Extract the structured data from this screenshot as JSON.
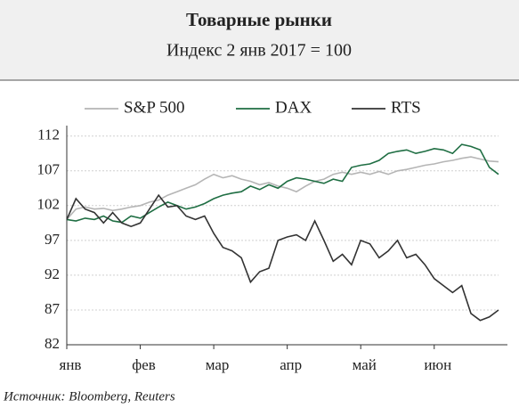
{
  "chart_data": {
    "type": "line",
    "title": "Товарные рынки",
    "subtitle": "Индекс 2 янв 2017 = 100",
    "source": "Источник: Bloomberg, Reuters",
    "categories": [
      "янв",
      null,
      null,
      null,
      null,
      null,
      null,
      null,
      "фев",
      null,
      null,
      null,
      null,
      null,
      null,
      null,
      "мар",
      null,
      null,
      null,
      null,
      null,
      null,
      null,
      "апр",
      null,
      null,
      null,
      null,
      null,
      null,
      null,
      "май",
      null,
      null,
      null,
      null,
      null,
      null,
      null,
      "июн",
      null,
      null,
      null,
      null,
      null,
      null,
      null
    ],
    "series": [
      {
        "name": "S&P 500",
        "color": "#b5b5b5",
        "values": [
          100,
          101.5,
          101.8,
          101.5,
          101.6,
          101.3,
          101.5,
          101.8,
          102,
          102.5,
          102.8,
          103.5,
          104,
          104.5,
          105,
          105.8,
          106.5,
          106,
          106.3,
          105.8,
          105.5,
          105,
          105.3,
          104.8,
          104.5,
          104,
          104.8,
          105.5,
          105.8,
          106.5,
          106.8,
          106.5,
          106.8,
          106.5,
          106.9,
          106.5,
          107,
          107.2,
          107.5,
          107.8,
          108,
          108.3,
          108.5,
          108.8,
          109,
          108.7,
          108.4,
          108.3
        ]
      },
      {
        "name": "DAX",
        "color": "#1f6e43",
        "values": [
          100,
          99.8,
          100.2,
          100,
          100.5,
          99.8,
          99.6,
          100.5,
          100.2,
          101,
          101.8,
          102.5,
          102,
          101.5,
          101.8,
          102.3,
          103,
          103.5,
          103.8,
          104,
          104.8,
          104.3,
          105,
          104.5,
          105.5,
          106,
          105.8,
          105.5,
          105.2,
          105.8,
          105.5,
          107.5,
          107.8,
          108,
          108.5,
          109.5,
          109.8,
          110,
          109.5,
          109.8,
          110.2,
          110,
          109.5,
          110.8,
          110.5,
          110,
          107.5,
          106.5
        ]
      },
      {
        "name": "RTS",
        "color": "#333333",
        "values": [
          100,
          103,
          101.5,
          101,
          99.5,
          101,
          99.5,
          99,
          99.5,
          101.5,
          103.5,
          101.8,
          102,
          100.5,
          100,
          100.5,
          98,
          96,
          95.5,
          94.5,
          91,
          92.5,
          93,
          97,
          97.5,
          97.8,
          97,
          99.8,
          97,
          94,
          95,
          93.5,
          97,
          96.5,
          94.5,
          95.5,
          97,
          94.5,
          95,
          93.5,
          91.5,
          90.5,
          89.5,
          90.5,
          86.5,
          85.5,
          86,
          87
        ]
      }
    ],
    "ylim": [
      82,
      113.5
    ],
    "yticks": [
      82,
      87,
      92,
      97,
      102,
      107,
      112
    ],
    "grid": true
  }
}
